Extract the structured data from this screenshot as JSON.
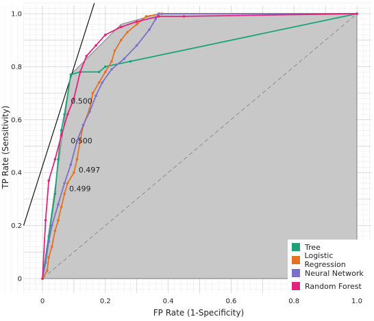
{
  "chart_data": {
    "type": "line",
    "xlabel": "FP Rate (1-Specificity)",
    "ylabel": "TP Rate (Sensitivity)",
    "xlim": [
      0,
      1
    ],
    "ylim": [
      0,
      1
    ],
    "x_ticks": [
      "0",
      "0.2",
      "0.4",
      "0.6",
      "0.8",
      "1.0"
    ],
    "y_ticks": [
      "0",
      "0.2",
      "0.4",
      "0.6",
      "0.8",
      "1.0"
    ],
    "grid": true,
    "legend_position": "bottom-right",
    "hull": [
      [
        0,
        0
      ],
      [
        0.09,
        0.77
      ],
      [
        0.25,
        0.96
      ],
      [
        0.37,
        1.0
      ],
      [
        1,
        1
      ],
      [
        1,
        0
      ]
    ],
    "diagonal": [
      [
        0,
        0
      ],
      [
        1,
        1
      ]
    ],
    "iso_line": [
      [
        -0.06,
        0.2
      ],
      [
        0.165,
        1.04
      ]
    ],
    "threshold_labels": [
      {
        "text": "0.500",
        "x": 0.09,
        "y": 0.66
      },
      {
        "text": "0.500",
        "x": 0.09,
        "y": 0.51
      },
      {
        "text": "0.497",
        "x": 0.115,
        "y": 0.4
      },
      {
        "text": "0.499",
        "x": 0.085,
        "y": 0.33
      }
    ],
    "series": [
      {
        "name": "Tree",
        "color": "#1aa37a",
        "points": [
          [
            0,
            0
          ],
          [
            0.02,
            0.16
          ],
          [
            0.04,
            0.32
          ],
          [
            0.05,
            0.45
          ],
          [
            0.06,
            0.56
          ],
          [
            0.07,
            0.62
          ],
          [
            0.09,
            0.77
          ],
          [
            0.12,
            0.78
          ],
          [
            0.18,
            0.78
          ],
          [
            0.2,
            0.8
          ],
          [
            0.28,
            0.82
          ],
          [
            1,
            1
          ]
        ]
      },
      {
        "name": "Logistic Regression",
        "color": "#e37222",
        "points": [
          [
            0,
            0
          ],
          [
            0.015,
            0.03
          ],
          [
            0.02,
            0.08
          ],
          [
            0.03,
            0.12
          ],
          [
            0.04,
            0.18
          ],
          [
            0.05,
            0.22
          ],
          [
            0.06,
            0.27
          ],
          [
            0.07,
            0.32
          ],
          [
            0.08,
            0.36
          ],
          [
            0.1,
            0.4
          ],
          [
            0.11,
            0.45
          ],
          [
            0.12,
            0.52
          ],
          [
            0.13,
            0.58
          ],
          [
            0.15,
            0.64
          ],
          [
            0.16,
            0.7
          ],
          [
            0.18,
            0.74
          ],
          [
            0.2,
            0.78
          ],
          [
            0.22,
            0.82
          ],
          [
            0.23,
            0.86
          ],
          [
            0.25,
            0.9
          ],
          [
            0.27,
            0.93
          ],
          [
            0.3,
            0.96
          ],
          [
            0.33,
            0.99
          ],
          [
            0.38,
            1.0
          ],
          [
            1,
            1
          ]
        ]
      },
      {
        "name": "Neural Network",
        "color": "#7b6fc7",
        "points": [
          [
            0,
            0
          ],
          [
            0.01,
            0.06
          ],
          [
            0.02,
            0.14
          ],
          [
            0.03,
            0.2
          ],
          [
            0.05,
            0.28
          ],
          [
            0.07,
            0.36
          ],
          [
            0.09,
            0.43
          ],
          [
            0.11,
            0.52
          ],
          [
            0.13,
            0.58
          ],
          [
            0.15,
            0.63
          ],
          [
            0.17,
            0.69
          ],
          [
            0.19,
            0.74
          ],
          [
            0.22,
            0.79
          ],
          [
            0.26,
            0.83
          ],
          [
            0.3,
            0.88
          ],
          [
            0.34,
            0.94
          ],
          [
            0.36,
            0.98
          ],
          [
            0.37,
            1.0
          ],
          [
            1,
            1
          ]
        ]
      },
      {
        "name": "Random Forest",
        "color": "#e0237e",
        "points": [
          [
            0,
            0
          ],
          [
            0.01,
            0.22
          ],
          [
            0.02,
            0.37
          ],
          [
            0.04,
            0.45
          ],
          [
            0.06,
            0.54
          ],
          [
            0.08,
            0.62
          ],
          [
            0.1,
            0.68
          ],
          [
            0.12,
            0.78
          ],
          [
            0.14,
            0.84
          ],
          [
            0.17,
            0.88
          ],
          [
            0.2,
            0.92
          ],
          [
            0.25,
            0.95
          ],
          [
            0.3,
            0.97
          ],
          [
            0.37,
            0.99
          ],
          [
            0.45,
            0.99
          ],
          [
            1,
            1
          ]
        ]
      }
    ]
  }
}
